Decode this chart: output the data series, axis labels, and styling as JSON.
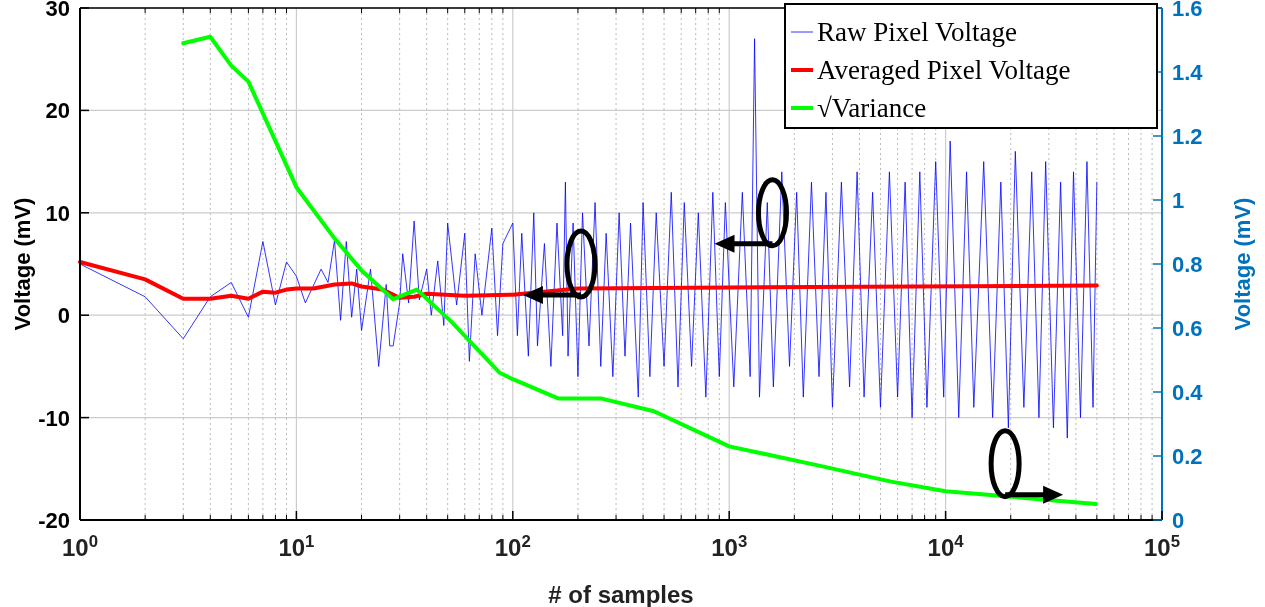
{
  "chart_data": {
    "type": "line",
    "xlabel": "# of samples",
    "ylabel": "Voltage (mV)",
    "y2label": "Voltage (mV)",
    "log": "x",
    "grid": true,
    "legend": "top right",
    "xlim": [
      1,
      100000
    ],
    "xticks": [
      {
        "value": 1,
        "label": "10$^{0}$"
      },
      {
        "value": 10,
        "label": "10$^{1}$"
      },
      {
        "value": 100,
        "label": "10$^{2}$"
      },
      {
        "value": 1000,
        "label": "10$^{3}$"
      },
      {
        "value": 10000,
        "label": "10$^{4}$"
      },
      {
        "value": 100000,
        "label": "10$^{5}$"
      }
    ],
    "ylim": [
      -20,
      30
    ],
    "yticks": [
      -20,
      -10,
      0,
      10,
      20,
      30
    ],
    "y2lim": [
      0,
      1.6
    ],
    "y2ticks": [
      0,
      0.2,
      0.4,
      0.6,
      0.8,
      1,
      1.2,
      1.4,
      1.6
    ],
    "series": [
      {
        "name": "Raw Pixel Voltage",
        "color": "#0000ff",
        "x": [
          1,
          2,
          3,
          4,
          5,
          6,
          7,
          8,
          9,
          10,
          11,
          13,
          14,
          15,
          16,
          17,
          18,
          19,
          20,
          22,
          24,
          26,
          27,
          28,
          30,
          31,
          33,
          35,
          37,
          40,
          42,
          45,
          48,
          50,
          55,
          60,
          63,
          67,
          72,
          80,
          85,
          90,
          100,
          105,
          110,
          118,
          125,
          130,
          140,
          150,
          160,
          170,
          175,
          180,
          190,
          200,
          210,
          225,
          240,
          255,
          270,
          290,
          310,
          330,
          350,
          380,
          400,
          430,
          460,
          500,
          540,
          580,
          620,
          670,
          720,
          780,
          840,
          900,
          960,
          1050,
          1150,
          1250,
          1310,
          1380,
          1500,
          1600,
          1750,
          1900,
          2050,
          2200,
          2400,
          2600,
          2800,
          3000,
          3300,
          3600,
          3900,
          4200,
          4600,
          5000,
          5500,
          6000,
          6500,
          7000,
          7600,
          8200,
          9000,
          9800,
          10500,
          11500,
          12500,
          13500,
          15000,
          16500,
          18000,
          19500,
          21000,
          23000,
          25000,
          27000,
          29000,
          31500,
          34000,
          36500,
          39000,
          42000,
          45000,
          48000,
          50000
        ],
        "values": [
          5,
          1.8,
          -2.3,
          1.8,
          3.2,
          -0.2,
          7.2,
          1,
          5.2,
          3.8,
          1.2,
          4.5,
          3.2,
          7.3,
          -0.5,
          7.2,
          -0.2,
          4.5,
          -1.5,
          4.5,
          -5,
          3,
          -3,
          -3,
          1.2,
          6,
          1.2,
          9.2,
          1.5,
          4.5,
          0,
          5.3,
          -1,
          9,
          1,
          8,
          -4.5,
          6,
          0,
          8.5,
          -2,
          7,
          9,
          -2,
          8,
          -4,
          10,
          -3,
          7,
          -5,
          9,
          -2,
          13,
          -4,
          9,
          -6,
          10,
          -3,
          11,
          -5,
          8,
          -6,
          10,
          -4,
          9,
          -8,
          11,
          -6,
          10,
          -5,
          12,
          -7,
          11,
          -5,
          10,
          -8,
          12,
          -6,
          11,
          -7,
          12,
          -6,
          27,
          -8,
          11,
          -7,
          14,
          -5,
          12,
          -8,
          13,
          -6,
          12,
          -9,
          13,
          -7,
          14,
          -8,
          12,
          -9,
          14,
          -8,
          13,
          -10,
          14,
          -9,
          15,
          -8,
          17,
          -10,
          14,
          -9,
          15,
          -10,
          13,
          -11,
          16,
          -9,
          14,
          -10,
          15,
          -11,
          13,
          -12,
          14,
          -10,
          15,
          -9,
          13
        ]
      },
      {
        "name": "Averaged Pixel Voltage",
        "color": "#ff0000",
        "x": [
          1,
          2,
          3,
          4,
          5,
          6,
          7,
          8,
          9,
          10,
          12,
          15,
          18,
          20,
          25,
          30,
          35,
          40,
          60,
          100,
          200,
          1000,
          50000
        ],
        "values": [
          5.2,
          3.5,
          1.6,
          1.6,
          1.9,
          1.6,
          2.3,
          2.2,
          2.5,
          2.6,
          2.6,
          3,
          3.1,
          2.8,
          2.5,
          1.7,
          1.8,
          2.1,
          1.9,
          2,
          2.6,
          2.7,
          2.9
        ]
      },
      {
        "name": "√Variance",
        "color": "#00ff00",
        "axis": "y2",
        "x": [
          3,
          4,
          5,
          6,
          10,
          15,
          20,
          28,
          36,
          52,
          87,
          100,
          162,
          192,
          255,
          449,
          1000,
          2600,
          5600,
          10000,
          49500
        ],
        "values": [
          1.49,
          1.51,
          1.42,
          1.37,
          1.04,
          0.88,
          0.78,
          0.69,
          0.72,
          0.62,
          0.46,
          0.44,
          0.38,
          0.38,
          0.38,
          0.34,
          0.23,
          0.17,
          0.12,
          0.09,
          0.05
        ]
      }
    ]
  }
}
